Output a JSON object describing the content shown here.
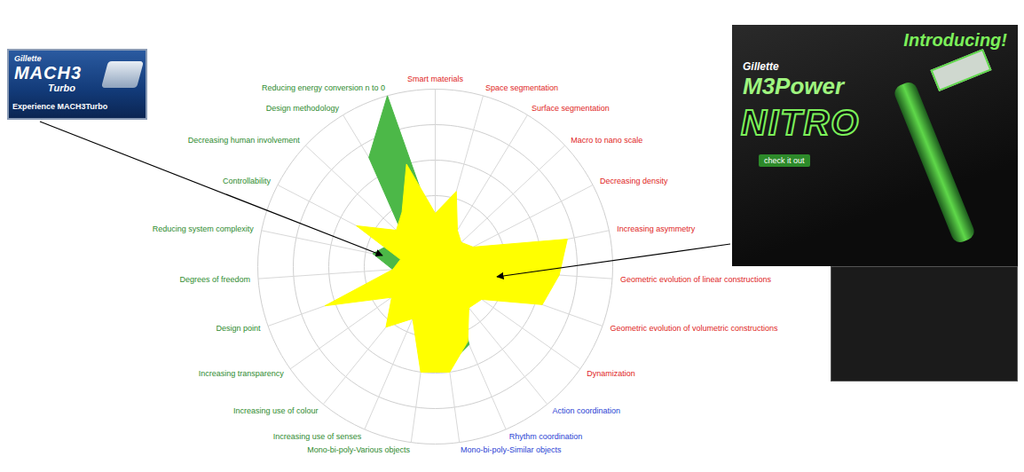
{
  "chart_data": {
    "type": "radar",
    "categories": [
      "Smart materials",
      "Space segmentation",
      "Surface segmentation",
      "Macro to nano scale",
      "Decreasing density",
      "Increasing asymmetry",
      "Geometric evolution of linear constructions",
      "Geometric evolution of volumetric constructions",
      "Dynamization",
      "Action coordination",
      "Rhythm coordination",
      "Mono-bi-poly-Similar objects",
      "Mono-bi-poly-Various objects",
      "Increasing use of senses",
      "Increasing use of colour",
      "Increasing transparency",
      "Design point",
      "Degrees of freedom",
      "Reducing system complexity",
      "Controllability",
      "Decreasing human involvement",
      "Design methodology",
      "Reducing energy conversion n to 0"
    ],
    "series": [
      {
        "color": "#4cb848",
        "values": [
          1.0,
          1.0,
          0.8,
          0.8,
          0.8,
          1.5,
          1.2,
          1.2,
          1.0,
          1.0,
          2.4,
          2.8,
          1.5,
          1.0,
          1.2,
          1.0,
          1.0,
          1.2,
          1.8,
          1.4,
          1.2,
          3.6,
          5.0
        ]
      },
      {
        "color": "#ffff00",
        "values": [
          1.5,
          2.2,
          1.2,
          1.0,
          1.2,
          3.8,
          3.5,
          3.2,
          1.6,
          1.5,
          2.3,
          3.0,
          3.0,
          1.6,
          2.2,
          1.5,
          3.3,
          1.2,
          1.0,
          2.5,
          1.5,
          1.8,
          3.0
        ]
      }
    ],
    "ylim": [
      0,
      5
    ],
    "yticks": [
      0,
      1,
      2,
      3,
      4,
      5
    ],
    "grid": true,
    "tick_labels": false,
    "annotations": [
      {
        "lines": [
          "Gillette",
          "MACH3",
          "Turbo",
          "Experience MACH3Turbo"
        ]
      },
      {
        "lines": [
          "Introducing!",
          "Gillette",
          "M3Power",
          "NITRO",
          "check it out"
        ]
      }
    ]
  }
}
